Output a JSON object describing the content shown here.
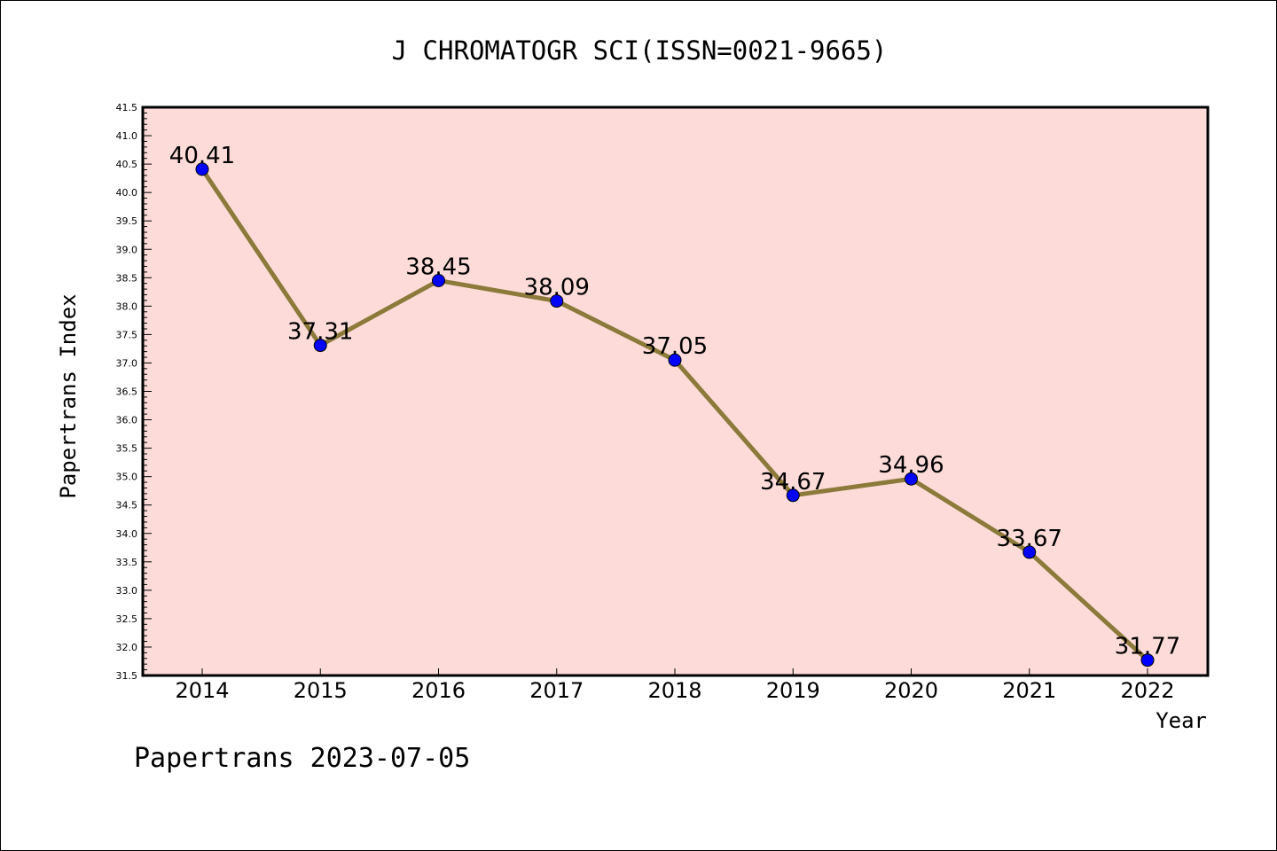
{
  "chart_data": {
    "type": "line",
    "title": "J CHROMATOGR SCI(ISSN=0021-9665)",
    "xlabel": "Year",
    "ylabel": "Papertrans Index",
    "categories": [
      "2014",
      "2015",
      "2016",
      "2017",
      "2018",
      "2019",
      "2020",
      "2021",
      "2022"
    ],
    "series": [
      {
        "values": [
          40.41,
          37.31,
          38.45,
          38.09,
          37.05,
          34.67,
          34.96,
          33.67,
          31.77
        ],
        "labels": [
          "40.41",
          "37.31",
          "38.45",
          "38.09",
          "37.05",
          "34.67",
          "34.96",
          "33.67",
          "31.77"
        ]
      }
    ],
    "ylim": [
      31.5,
      41.5
    ],
    "ytick_step": 0.5,
    "ytick_labels": [
      "31.5",
      "32.0",
      "32.5",
      "33.0",
      "33.5",
      "34.0",
      "34.5",
      "35.0",
      "35.5",
      "36.0",
      "36.5",
      "37.0",
      "37.5",
      "38.0",
      "38.5",
      "39.0",
      "39.5",
      "40.0",
      "40.5",
      "41.0",
      "41.5"
    ],
    "grid": false,
    "plot_background": "#fddbd9",
    "line_color": "#8b7a3a",
    "marker_color": "#0000ff",
    "footer": "Papertrans 2023-07-05"
  }
}
